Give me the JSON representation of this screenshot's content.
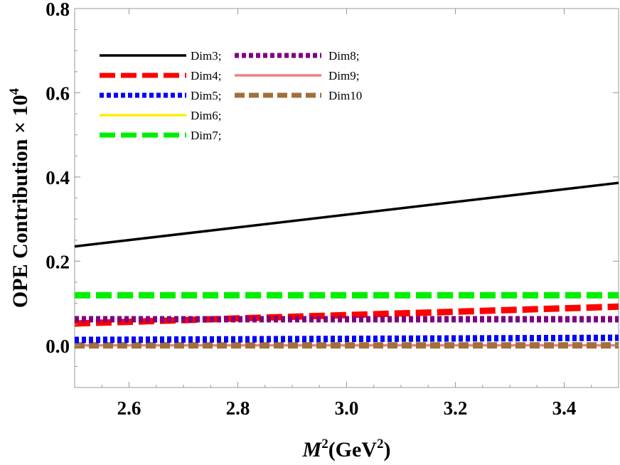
{
  "chart_data": {
    "type": "line",
    "xlabel_italic": "M",
    "xlabel_sup1": "2",
    "xlabel_rest": "(GeV",
    "xlabel_sup2": "2",
    "xlabel_close": ")",
    "ylabel_main": "OPE Contribution × 10",
    "ylabel_sup": "4",
    "xlim": [
      2.5,
      3.5
    ],
    "ylim": [
      -0.1,
      0.8
    ],
    "xticks": [
      2.6,
      2.8,
      3.0,
      3.2,
      3.4
    ],
    "xtick_labels": [
      "2.6",
      "2.8",
      "3.0",
      "3.2",
      "3.4"
    ],
    "yticks": [
      0.0,
      0.2,
      0.4,
      0.6,
      0.8
    ],
    "ytick_labels": [
      "0.0",
      "0.2",
      "0.4",
      "0.6",
      "0.8"
    ],
    "grid": false,
    "legend_position": "top-left",
    "x": [
      2.5,
      3.5
    ],
    "series": [
      {
        "name": "Dim3;",
        "values": [
          0.235,
          0.386
        ],
        "color": "#000000",
        "style": "solid"
      },
      {
        "name": "Dim4;",
        "values": [
          0.052,
          0.092
        ],
        "color": "#ff0000",
        "style": "dashed"
      },
      {
        "name": "Dim5;",
        "values": [
          0.013,
          0.018
        ],
        "color": "#0000ff",
        "style": "dotted"
      },
      {
        "name": "Dim6;",
        "values": [
          0.0,
          0.0
        ],
        "color": "#ffee00",
        "style": "solid"
      },
      {
        "name": "Dim7;",
        "values": [
          0.119,
          0.119
        ],
        "color": "#00ee00",
        "style": "dashed"
      },
      {
        "name": "Dim8;",
        "values": [
          0.062,
          0.062
        ],
        "color": "#800080",
        "style": "dotted"
      },
      {
        "name": "Dim9;",
        "values": [
          0.0,
          0.0
        ],
        "color": "#f08080",
        "style": "solid"
      },
      {
        "name": "Dim10",
        "values": [
          0.0,
          0.0
        ],
        "color": "#a0703c",
        "style": "dashed"
      }
    ]
  }
}
